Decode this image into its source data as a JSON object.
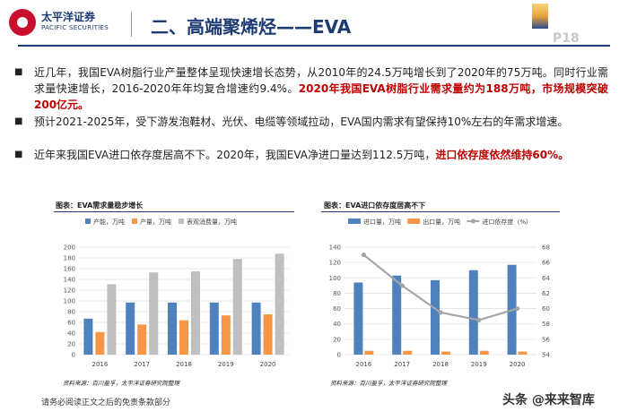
{
  "header": {
    "logo_cn": "太平洋证券",
    "logo_en": "PACIFIC SECURITIES",
    "title": "二、高端聚烯烃——EVA",
    "page": "P18"
  },
  "bullets": [
    {
      "text": "近几年，我国EVA树脂行业产量整体呈现快速增长态势，从2010年的24.5万吨增长到了2020年的75万吨。同时行业需求量快速增长，2016-2020年年均复合增速约9.4%。",
      "highlight": "2020年我国EVA树脂行业需求量约为188万吨，市场规模突破200亿元。"
    },
    {
      "text": "预计2021-2025年，受下游发泡鞋材、光伏、电缆等领域拉动，EVA国内需求有望保持10%左右的年需求增速。",
      "highlight": ""
    },
    {
      "text": "近年来我国EVA进口依存度居高不下。2020年，我国EVA净进口量达到112.5万吨，",
      "highlight": "进口依存度依然维持60%。"
    }
  ],
  "footer": "请务必阅读正文之后的免责条款部分",
  "watermark": "头条 @来来智库",
  "colors": {
    "blue": "#4f81bd",
    "orange": "#f79646",
    "gray": "#bfbfbf",
    "line_gray": "#a6a6a6",
    "navy": "#1d3b73",
    "red": "#c00000"
  },
  "chart_data": [
    {
      "panel_title": "图表：EVA需求量稳步增长",
      "type": "bar",
      "categories": [
        "2016",
        "2017",
        "2018",
        "2019",
        "2020"
      ],
      "series": [
        {
          "name": "产能，万吨",
          "values": [
            67,
            97,
            97,
            97,
            97
          ]
        },
        {
          "name": "产量，万吨",
          "values": [
            42,
            56,
            64,
            73,
            75
          ]
        },
        {
          "name": "表观消费量，万吨",
          "values": [
            131,
            153,
            155,
            178,
            188
          ]
        }
      ],
      "ylim": [
        0,
        200
      ],
      "yticks": [
        "0",
        "20",
        "40",
        "60",
        "80",
        "100",
        "120",
        "140",
        "160",
        "180",
        "200"
      ],
      "legend": "top",
      "grid": true,
      "source": "资料来源：百川盈孚，太平洋证券研究院整理"
    },
    {
      "panel_title": "图表：EVA进口依存度居高不下",
      "type": "bar",
      "categories": [
        "2016",
        "2017",
        "2018",
        "2019",
        "2020"
      ],
      "series": [
        {
          "name": "进口量，万吨",
          "values": [
            94,
            103,
            97,
            110,
            117
          ],
          "axis": "left"
        },
        {
          "name": "出口量，万吨",
          "values": [
            5,
            5,
            4,
            5,
            4
          ],
          "axis": "left"
        },
        {
          "name": "进口依存度（%）",
          "values": [
            67,
            63,
            59.5,
            58.5,
            60
          ],
          "axis": "right",
          "type": "line"
        }
      ],
      "ylim": [
        0,
        140
      ],
      "yticks": [
        "0",
        "20",
        "40",
        "60",
        "80",
        "100",
        "120",
        "140"
      ],
      "y2lim": [
        54,
        68
      ],
      "y2ticks": [
        "54",
        "56",
        "58",
        "60",
        "62",
        "64",
        "66",
        "68"
      ],
      "legend": "top",
      "grid": true,
      "source": "资料来源：百川盈孚，太平洋证券研究院整理"
    }
  ]
}
